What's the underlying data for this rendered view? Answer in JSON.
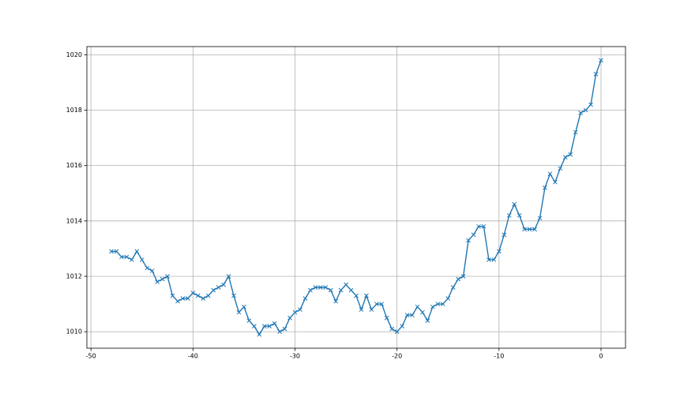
{
  "chart_data": {
    "type": "line",
    "marker": "x",
    "x": [
      -48,
      -47.5,
      -47,
      -46.5,
      -46,
      -45.5,
      -45,
      -44.5,
      -44,
      -43.5,
      -43,
      -42.5,
      -42,
      -41.5,
      -41,
      -40.5,
      -40,
      -39.5,
      -39,
      -38.5,
      -38,
      -37.5,
      -37,
      -36.5,
      -36,
      -35.5,
      -35,
      -34.5,
      -34,
      -33.5,
      -33,
      -32.5,
      -32,
      -31.5,
      -31,
      -30.5,
      -30,
      -29.5,
      -29,
      -28.5,
      -28,
      -27.5,
      -27,
      -26.5,
      -26,
      -25.5,
      -25,
      -24.5,
      -24,
      -23.5,
      -23,
      -22.5,
      -22,
      -21.5,
      -21,
      -20.5,
      -20,
      -19.5,
      -19,
      -18.5,
      -18,
      -17.5,
      -17,
      -16.5,
      -16,
      -15.5,
      -15,
      -14.5,
      -14,
      -13.5,
      -13,
      -12.5,
      -12,
      -11.5,
      -11,
      -10.5,
      -10,
      -9.5,
      -9,
      -8.5,
      -8,
      -7.5,
      -7,
      -6.5,
      -6,
      -5.5,
      -5,
      -4.5,
      -4,
      -3.5,
      -3,
      -2.5,
      -2,
      -1.5,
      -1,
      -0.5,
      0
    ],
    "series": [
      {
        "color": "#1f77b4",
        "values": [
          1012.9,
          1012.9,
          1012.7,
          1012.7,
          1012.6,
          1012.9,
          1012.6,
          1012.3,
          1012.2,
          1011.8,
          1011.9,
          1012.0,
          1011.3,
          1011.1,
          1011.2,
          1011.2,
          1011.4,
          1011.3,
          1011.2,
          1011.3,
          1011.5,
          1011.6,
          1011.7,
          1012.0,
          1011.3,
          1010.7,
          1010.9,
          1010.4,
          1010.2,
          1009.9,
          1010.2,
          1010.2,
          1010.3,
          1010.0,
          1010.1,
          1010.5,
          1010.7,
          1010.8,
          1011.2,
          1011.5,
          1011.6,
          1011.6,
          1011.6,
          1011.5,
          1011.1,
          1011.5,
          1011.7,
          1011.5,
          1011.3,
          1010.8,
          1011.3,
          1010.8,
          1011.0,
          1011.0,
          1010.5,
          1010.1,
          1010.0,
          1010.2,
          1010.6,
          1010.6,
          1010.9,
          1010.7,
          1010.4,
          1010.9,
          1011.0,
          1011.0,
          1011.2,
          1011.6,
          1011.9,
          1012.0,
          1013.3,
          1013.5,
          1013.8,
          1013.8,
          1012.6,
          1012.6,
          1012.9,
          1013.5,
          1014.2,
          1014.6,
          1014.2,
          1013.7,
          1013.7,
          1013.7,
          1014.1,
          1015.2,
          1015.7,
          1015.4,
          1015.9,
          1016.3,
          1016.4,
          1017.2,
          1017.9,
          1018.0,
          1018.2,
          1019.3,
          1019.8
        ]
      }
    ],
    "xlim": [
      -50.4,
      2.4
    ],
    "ylim": [
      1009.405,
      1020.295
    ],
    "xticks": [
      -50,
      -40,
      -30,
      -20,
      -10,
      0
    ],
    "yticks": [
      1010,
      1012,
      1014,
      1016,
      1018,
      1020
    ],
    "grid": true
  }
}
